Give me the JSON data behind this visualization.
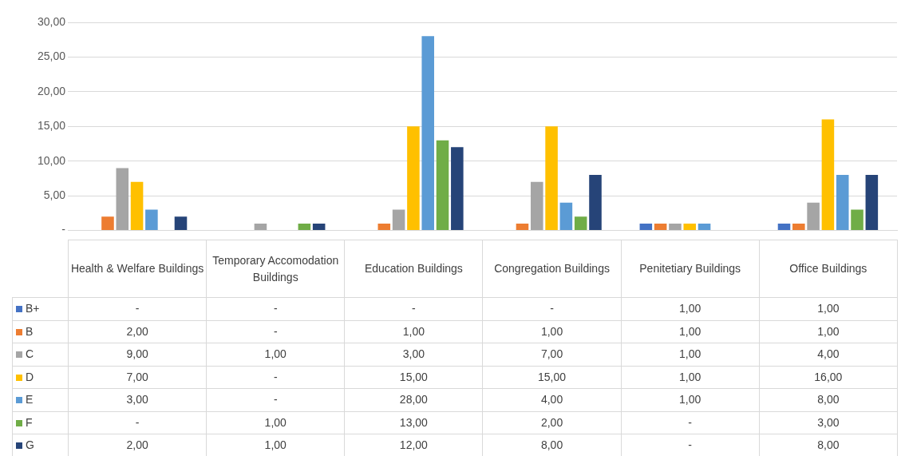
{
  "chart_data": {
    "type": "bar",
    "categories": [
      "Health & Welfare Buildings",
      "Temporary Accomodation Buildings",
      "Education Buildings",
      "Congregation Buildings",
      "Penitetiary Buildings",
      "Office Buildings"
    ],
    "series": [
      {
        "name": "B+",
        "color": "#4472c4",
        "values": [
          null,
          null,
          null,
          null,
          1,
          1
        ],
        "value_labels": [
          "-",
          "-",
          "-",
          "-",
          "1,00",
          "1,00"
        ]
      },
      {
        "name": "B",
        "color": "#ed7d31",
        "values": [
          2,
          null,
          1,
          1,
          1,
          1
        ],
        "value_labels": [
          "2,00",
          "-",
          "1,00",
          "1,00",
          "1,00",
          "1,00"
        ]
      },
      {
        "name": "C",
        "color": "#a5a5a5",
        "values": [
          9,
          1,
          3,
          7,
          1,
          4
        ],
        "value_labels": [
          "9,00",
          "1,00",
          "3,00",
          "7,00",
          "1,00",
          "4,00"
        ]
      },
      {
        "name": "D",
        "color": "#ffc000",
        "values": [
          7,
          null,
          15,
          15,
          1,
          16
        ],
        "value_labels": [
          "7,00",
          "-",
          "15,00",
          "15,00",
          "1,00",
          "16,00"
        ]
      },
      {
        "name": "E",
        "color": "#5b9bd5",
        "values": [
          3,
          null,
          28,
          4,
          1,
          8
        ],
        "value_labels": [
          "3,00",
          "-",
          "28,00",
          "4,00",
          "1,00",
          "8,00"
        ]
      },
      {
        "name": "F",
        "color": "#70ad47",
        "values": [
          null,
          1,
          13,
          2,
          null,
          3
        ],
        "value_labels": [
          "-",
          "1,00",
          "13,00",
          "2,00",
          "-",
          "3,00"
        ]
      },
      {
        "name": "G",
        "color": "#264478",
        "values": [
          2,
          1,
          12,
          8,
          null,
          8
        ],
        "value_labels": [
          "2,00",
          "1,00",
          "12,00",
          "8,00",
          "-",
          "8,00"
        ]
      }
    ],
    "ylim": [
      0,
      30
    ],
    "yticks": [
      {
        "value": 0,
        "label": "-"
      },
      {
        "value": 5,
        "label": "5,00"
      },
      {
        "value": 10,
        "label": "10,00"
      },
      {
        "value": 15,
        "label": "15,00"
      },
      {
        "value": 20,
        "label": "20,00"
      },
      {
        "value": 25,
        "label": "25,00"
      },
      {
        "value": 30,
        "label": "30,00"
      }
    ],
    "grid": "y",
    "legend": "bottom"
  }
}
